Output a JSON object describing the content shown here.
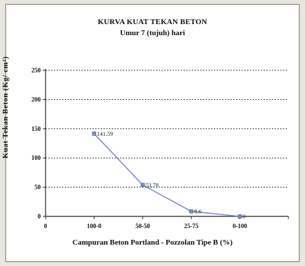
{
  "chart_data": {
    "type": "line",
    "title": "KURVA KUAT TEKAN BETON",
    "subtitle": "Umur 7 (tujuh) hari",
    "xlabel": "Campuran Beton Portland - Pozzolan Tipe B (%)",
    "ylabel": "Kuat Tekan Beton (Kg/ cm²)",
    "ylim": [
      0,
      250
    ],
    "yticks": [
      "0",
      "50",
      "100",
      "150",
      "200",
      "250"
    ],
    "categories": [
      "0",
      "100-0",
      "50-50",
      "25-75",
      "0-100"
    ],
    "series": [
      {
        "values": [
          null,
          141.59,
          53.78,
          8.6,
          0
        ],
        "labels": [
          "",
          "141.59",
          "53.78",
          "8.6",
          "0"
        ],
        "color": "#7b8fc4"
      }
    ],
    "grid": true
  }
}
